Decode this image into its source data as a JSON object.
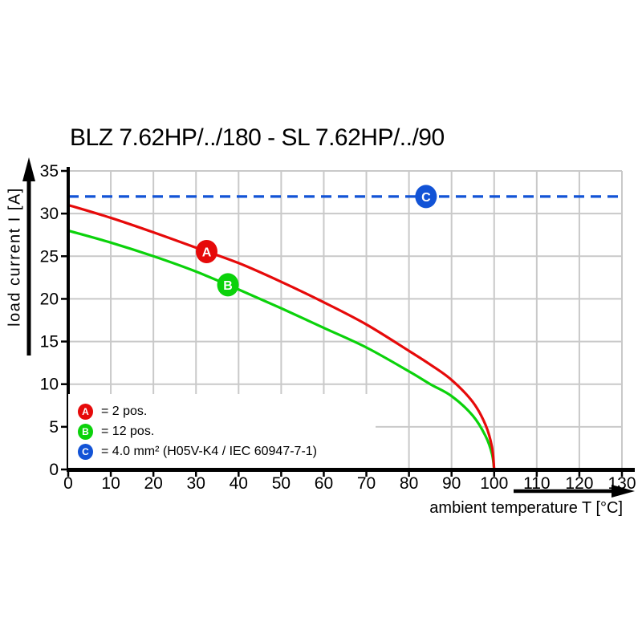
{
  "title": "BLZ 7.62HP/../180 - SL 7.62HP/../90",
  "colors": {
    "series_a_red": "#e60a0a",
    "series_b_green": "#0bd20b",
    "series_c_blue": "#1253d6",
    "grid": "#c9c9c9",
    "axis": "#000000",
    "background": "#ffffff"
  },
  "legend": {
    "items": [
      {
        "letter": "A",
        "label": "= 2 pos.",
        "color": "#e60a0a"
      },
      {
        "letter": "B",
        "label": "= 12 pos.",
        "color": "#0bd20b"
      },
      {
        "letter": "C",
        "label": "= 4.0 mm² (H05V-K4 / IEC 60947-7-1)",
        "color": "#1253d6"
      }
    ]
  },
  "chart_data": {
    "type": "line",
    "title": "BLZ 7.62HP/../180 - SL 7.62HP/../90",
    "xlabel": "ambient temperature T [°C]",
    "ylabel": "load current I [A]",
    "xlim": [
      0,
      130
    ],
    "ylim": [
      0,
      35
    ],
    "xticks": [
      0,
      10,
      20,
      30,
      40,
      50,
      60,
      70,
      80,
      90,
      100,
      110,
      120,
      130
    ],
    "yticks": [
      0,
      5,
      10,
      15,
      20,
      25,
      30,
      35
    ],
    "grid": true,
    "legend_position": "bottom-left",
    "series": [
      {
        "name": "C",
        "meaning": "4.0 mm² (H05V-K4 / IEC 60947-7-1)",
        "color": "#1253d6",
        "style": "dashed",
        "points": [
          [
            0,
            32
          ],
          [
            130,
            32
          ]
        ]
      },
      {
        "name": "B",
        "meaning": "12 pos.",
        "color": "#0bd20b",
        "style": "solid",
        "points": [
          [
            0,
            28
          ],
          [
            10,
            26.6
          ],
          [
            20,
            25.0
          ],
          [
            30,
            23.2
          ],
          [
            40,
            21.1
          ],
          [
            50,
            18.9
          ],
          [
            60,
            16.6
          ],
          [
            70,
            14.3
          ],
          [
            80,
            11.5
          ],
          [
            85,
            10.0
          ],
          [
            90,
            8.6
          ],
          [
            95,
            6.3
          ],
          [
            98,
            3.9
          ],
          [
            99.5,
            1.8
          ],
          [
            100,
            0
          ]
        ]
      },
      {
        "name": "A",
        "meaning": "2 pos.",
        "color": "#e60a0a",
        "style": "solid",
        "points": [
          [
            0,
            31
          ],
          [
            10,
            29.5
          ],
          [
            20,
            27.8
          ],
          [
            30,
            26.0
          ],
          [
            40,
            24.2
          ],
          [
            50,
            22.0
          ],
          [
            60,
            19.6
          ],
          [
            70,
            17.0
          ],
          [
            80,
            13.9
          ],
          [
            85,
            12.3
          ],
          [
            90,
            10.5
          ],
          [
            95,
            7.9
          ],
          [
            98,
            5.2
          ],
          [
            99.5,
            2.6
          ],
          [
            100,
            0
          ]
        ]
      }
    ],
    "markers": [
      {
        "letter": "A",
        "x": 32.5,
        "y": 25.55,
        "color": "#e60a0a"
      },
      {
        "letter": "B",
        "x": 37.5,
        "y": 21.65,
        "color": "#0bd20b"
      },
      {
        "letter": "C",
        "x": 84,
        "y": 32,
        "color": "#1253d6"
      }
    ]
  }
}
